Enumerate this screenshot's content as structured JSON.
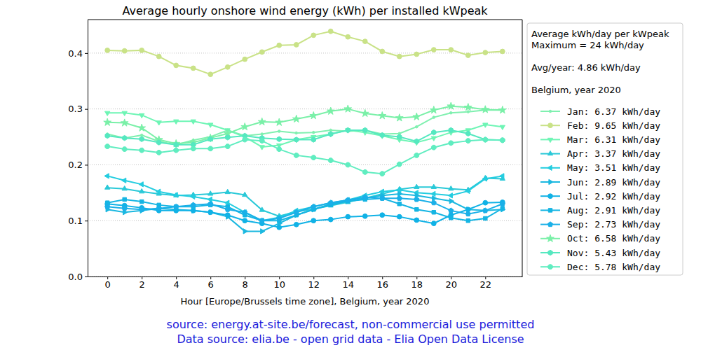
{
  "chart_data": {
    "type": "line",
    "title": "Average hourly onshore wind energy (kWh) per installed kWpeak",
    "x_label": "Hour [Europe/Brussels time zone], Belgium, year 2020",
    "annotations": [
      "source: energy.at-site.be/forecast, non-commercial use permitted",
      "Data source: elia.be - open grid data - Elia Open Data License"
    ],
    "legend_title": [
      [
        "Average kWh/day per kWpeak",
        "Maximum = 24 kWh/day"
      ],
      [
        "Avg/year: 4.86 kWh/day"
      ],
      [
        "Belgium, year 2020"
      ]
    ],
    "legend": "right",
    "grid": true,
    "x": [
      0,
      1,
      2,
      3,
      4,
      5,
      6,
      7,
      8,
      9,
      10,
      11,
      12,
      13,
      14,
      15,
      16,
      17,
      18,
      19,
      20,
      21,
      22,
      23
    ],
    "xlim": [
      -1.15,
      24.15
    ],
    "xticks": [
      0,
      2,
      4,
      6,
      8,
      10,
      12,
      14,
      16,
      18,
      20,
      22
    ],
    "ylim": [
      0,
      0.46
    ],
    "yticks": [
      {
        "value": 0,
        "label": "0.0"
      },
      0.1,
      0.2,
      0.3,
      0.4
    ],
    "series": [
      {
        "name": "Jan: 6.37 kWh/day",
        "color": "#80f0b0",
        "marker": "point",
        "values": [
          0.255,
          0.248,
          0.253,
          0.242,
          0.236,
          0.244,
          0.25,
          0.262,
          0.252,
          0.255,
          0.26,
          0.257,
          0.258,
          0.262,
          0.26,
          0.262,
          0.255,
          0.256,
          0.268,
          0.285,
          0.293,
          0.295,
          0.298,
          0.298
        ]
      },
      {
        "name": "Feb: 9.65 kWh/day",
        "color": "#c9e287",
        "marker": "circle",
        "values": [
          0.405,
          0.404,
          0.405,
          0.394,
          0.378,
          0.373,
          0.362,
          0.375,
          0.389,
          0.402,
          0.414,
          0.415,
          0.432,
          0.439,
          0.429,
          0.421,
          0.403,
          0.394,
          0.398,
          0.406,
          0.406,
          0.396,
          0.401,
          0.403
        ]
      },
      {
        "name": "Mar: 6.31 kWh/day",
        "color": "#6ef5b5",
        "marker": "triangle_down",
        "values": [
          0.293,
          0.293,
          0.289,
          0.276,
          0.278,
          0.278,
          0.272,
          0.262,
          0.25,
          0.232,
          0.235,
          0.245,
          0.25,
          0.255,
          0.262,
          0.258,
          0.252,
          0.245,
          0.24,
          0.248,
          0.258,
          0.262,
          0.272,
          0.268
        ]
      },
      {
        "name": "Apr: 3.37 kWh/day",
        "color": "#2ac9d8",
        "marker": "triangle_up",
        "values": [
          0.159,
          0.157,
          0.152,
          0.148,
          0.145,
          0.146,
          0.148,
          0.151,
          0.146,
          0.119,
          0.108,
          0.116,
          0.121,
          0.127,
          0.133,
          0.14,
          0.148,
          0.156,
          0.16,
          0.16,
          0.157,
          0.155,
          0.176,
          0.175
        ]
      },
      {
        "name": "May: 3.51 kWh/day",
        "color": "#24cde0",
        "marker": "triangle_left",
        "values": [
          0.18,
          0.172,
          0.165,
          0.152,
          0.146,
          0.143,
          0.138,
          0.132,
          0.115,
          0.1,
          0.106,
          0.118,
          0.125,
          0.132,
          0.137,
          0.145,
          0.152,
          0.155,
          0.15,
          0.148,
          0.145,
          0.153,
          0.175,
          0.18
        ]
      },
      {
        "name": "Jun: 2.89 kWh/day",
        "color": "#1bb8e0",
        "marker": "triangle_right",
        "values": [
          0.12,
          0.115,
          0.118,
          0.122,
          0.12,
          0.118,
          0.115,
          0.107,
          0.081,
          0.081,
          0.095,
          0.11,
          0.12,
          0.13,
          0.135,
          0.14,
          0.145,
          0.148,
          0.145,
          0.14,
          0.135,
          0.12,
          0.118,
          0.12
        ]
      },
      {
        "name": "Jul: 2.92 kWh/day",
        "color": "#10b2e6",
        "marker": "circle",
        "values": [
          0.13,
          0.127,
          0.123,
          0.118,
          0.118,
          0.118,
          0.115,
          0.11,
          0.1,
          0.095,
          0.088,
          0.093,
          0.1,
          0.102,
          0.107,
          0.108,
          0.11,
          0.107,
          0.101,
          0.095,
          0.11,
          0.12,
          0.132,
          0.133
        ]
      },
      {
        "name": "Aug: 2.91 kWh/day",
        "color": "#15b5e3",
        "marker": "square",
        "values": [
          0.132,
          0.138,
          0.134,
          0.128,
          0.125,
          0.125,
          0.128,
          0.125,
          0.11,
          0.1,
          0.1,
          0.11,
          0.12,
          0.128,
          0.135,
          0.138,
          0.14,
          0.13,
          0.12,
          0.115,
          0.105,
          0.1,
          0.104,
          0.122
        ]
      },
      {
        "name": "Sep: 2.73 kWh/day",
        "color": "#1ab0e8",
        "marker": "pentagon",
        "values": [
          0.125,
          0.122,
          0.12,
          0.122,
          0.125,
          0.128,
          0.13,
          0.12,
          0.115,
          0.1,
          0.104,
          0.115,
          0.125,
          0.132,
          0.137,
          0.142,
          0.14,
          0.14,
          0.138,
          0.132,
          0.118,
          0.112,
          0.118,
          0.13
        ]
      },
      {
        "name": "Oct: 6.58 kWh/day",
        "color": "#7af0a8",
        "marker": "star",
        "values": [
          0.276,
          0.275,
          0.266,
          0.245,
          0.238,
          0.24,
          0.248,
          0.256,
          0.268,
          0.277,
          0.276,
          0.282,
          0.288,
          0.296,
          0.3,
          0.292,
          0.288,
          0.284,
          0.286,
          0.298,
          0.305,
          0.303,
          0.299,
          0.298
        ]
      },
      {
        "name": "Nov: 5.43 kWh/day",
        "color": "#55e8c0",
        "marker": "hexagon",
        "values": [
          0.252,
          0.248,
          0.246,
          0.24,
          0.236,
          0.236,
          0.246,
          0.249,
          0.252,
          0.248,
          0.246,
          0.245,
          0.245,
          0.255,
          0.262,
          0.262,
          0.253,
          0.25,
          0.242,
          0.258,
          0.262,
          0.256,
          0.245,
          0.244
        ]
      },
      {
        "name": "Dec: 5.78 kWh/day",
        "color": "#60edc0",
        "marker": "octagon",
        "values": [
          0.233,
          0.228,
          0.226,
          0.222,
          0.226,
          0.229,
          0.229,
          0.233,
          0.245,
          0.243,
          0.228,
          0.217,
          0.213,
          0.208,
          0.2,
          0.187,
          0.184,
          0.201,
          0.217,
          0.231,
          0.239,
          0.243,
          0.245,
          0.244
        ]
      }
    ]
  }
}
